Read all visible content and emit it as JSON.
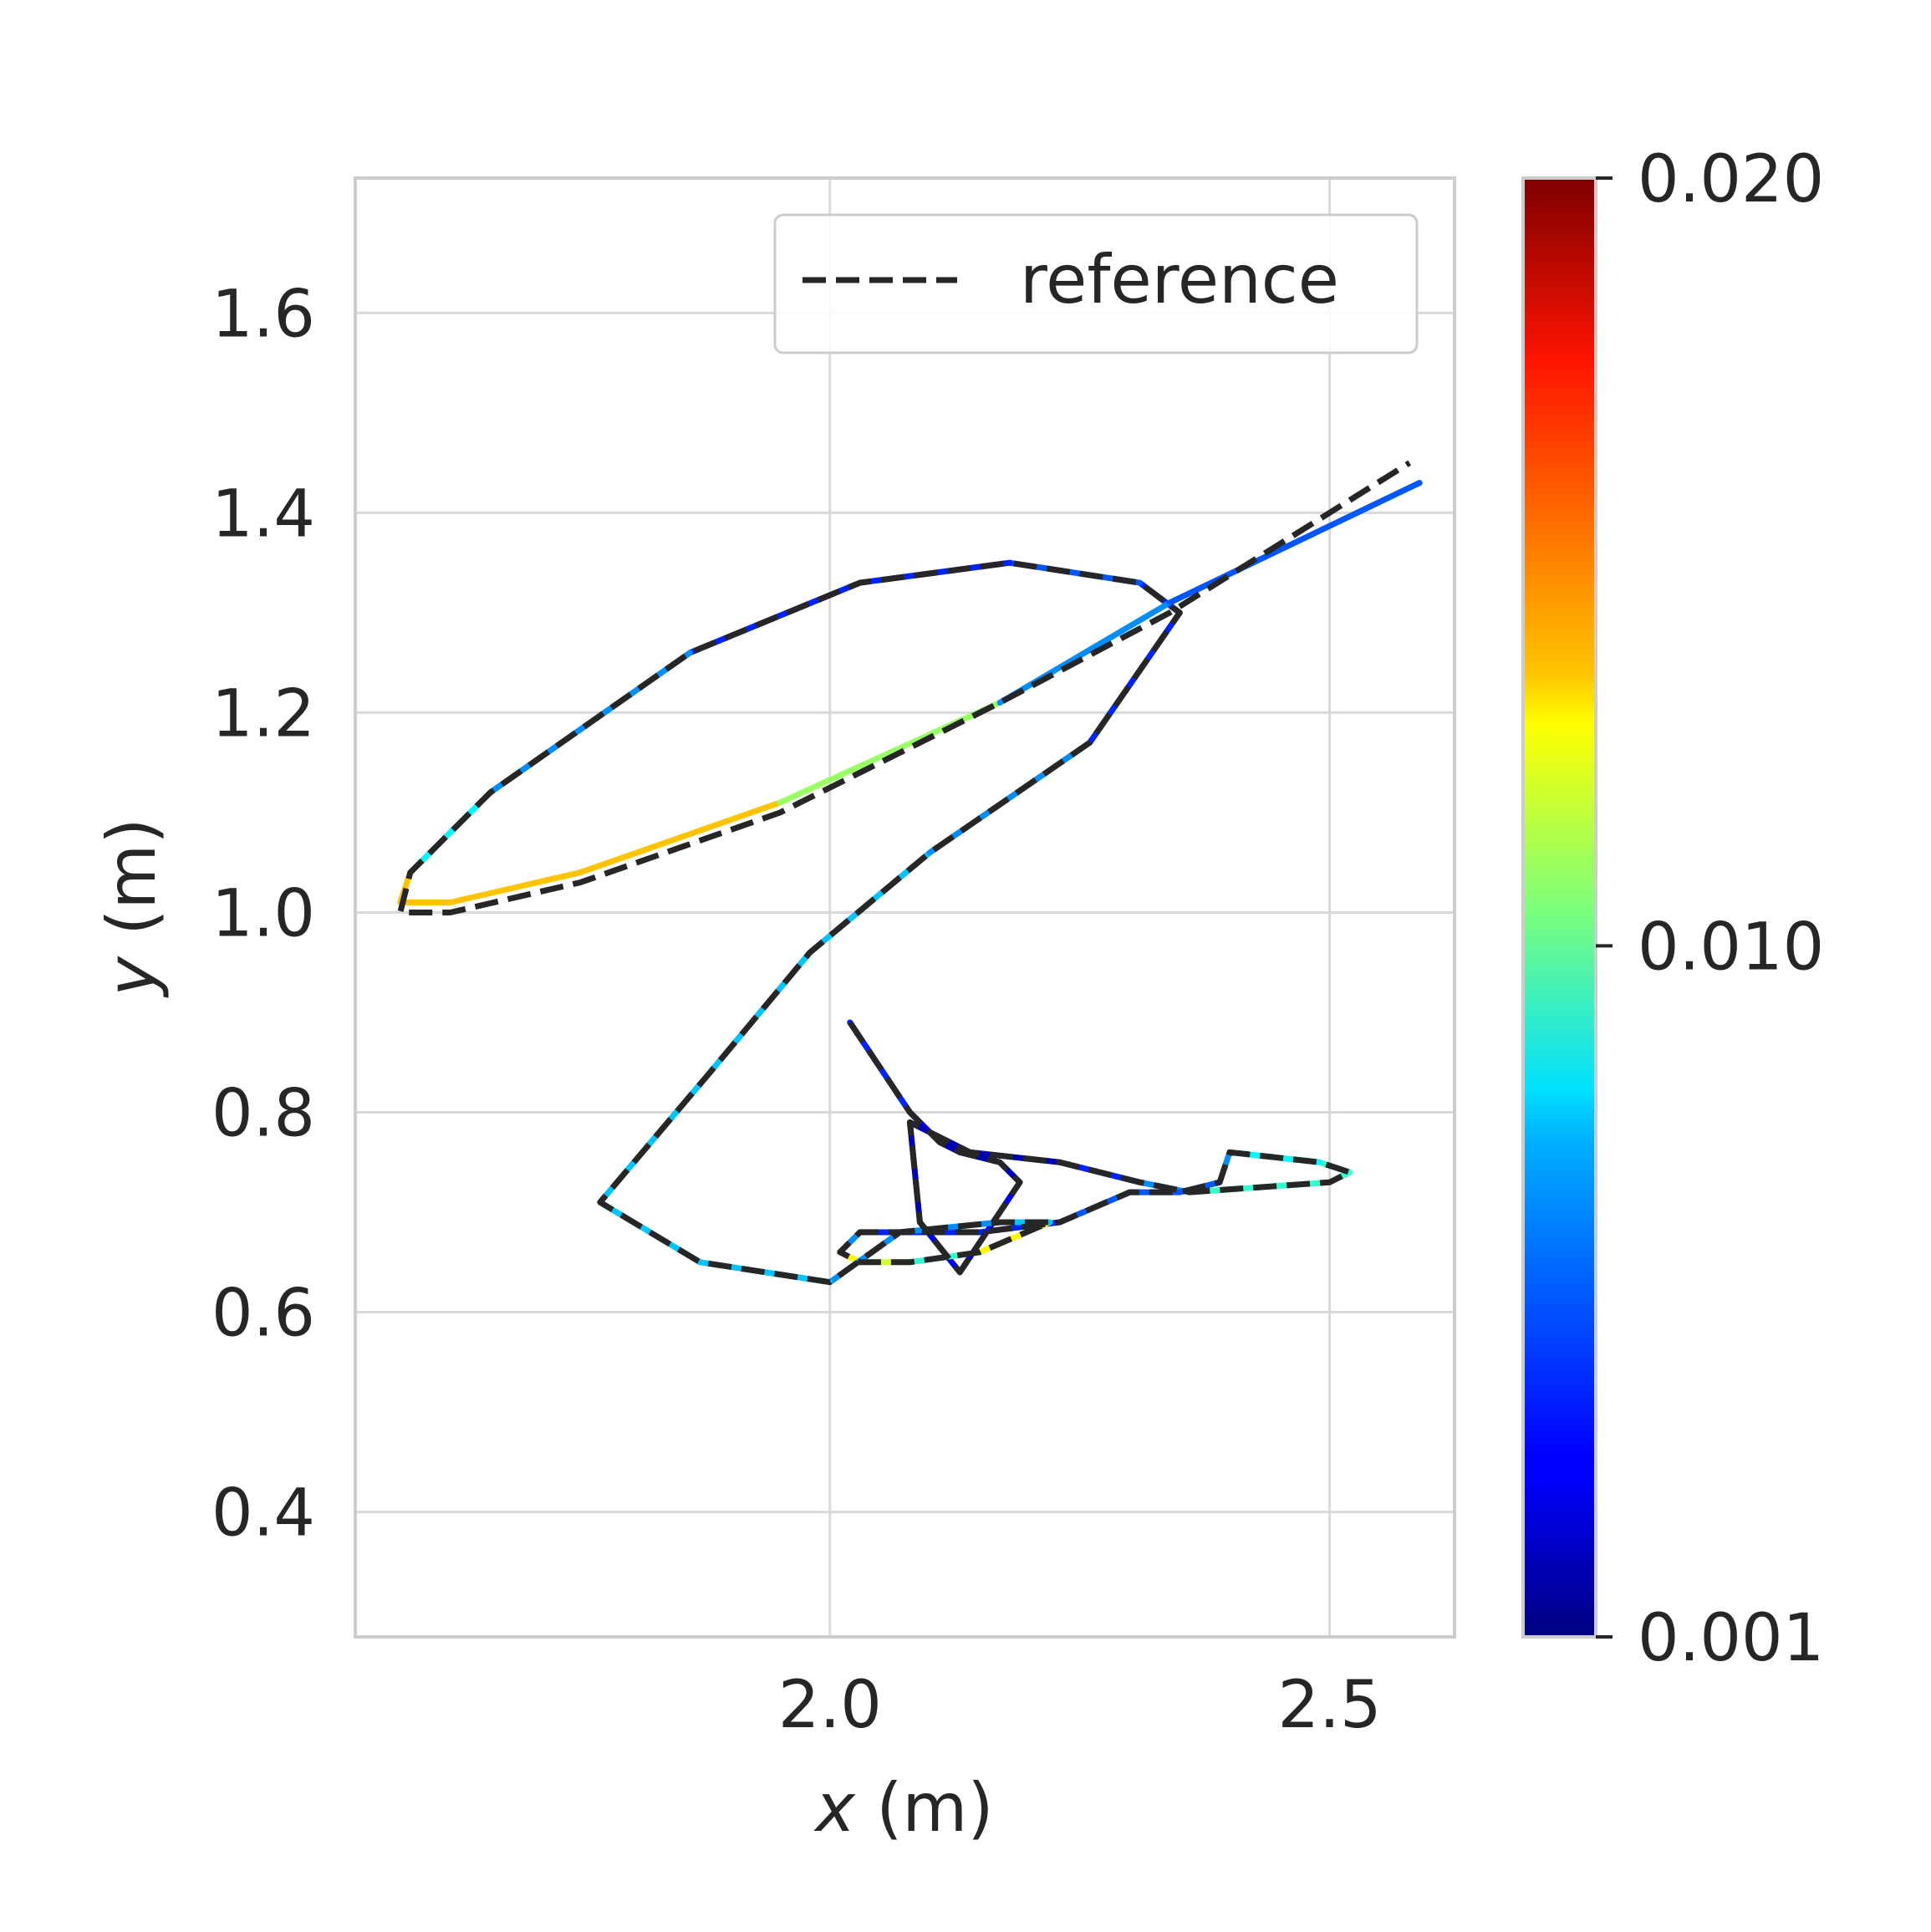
{
  "chart_data": {
    "type": "line",
    "title": "",
    "xlabel_var": "x",
    "xlabel_unit": " (m)",
    "ylabel_var": "y",
    "ylabel_unit": " (m)",
    "xlim": [
      1.525,
      2.625
    ],
    "ylim": [
      0.275,
      1.735
    ],
    "xticks": [
      2.0,
      2.5
    ],
    "xtick_labels": [
      "2.0",
      "2.5"
    ],
    "yticks": [
      0.4,
      0.6,
      0.8,
      1.0,
      1.2,
      1.4,
      1.6
    ],
    "ytick_labels": [
      "0.4",
      "0.6",
      "0.8",
      "1.0",
      "1.2",
      "1.4",
      "1.6"
    ],
    "grid": true,
    "legend": {
      "position": "top-right",
      "entries": [
        "reference"
      ]
    },
    "colorbar": {
      "colormap": "jet",
      "min": 0.001,
      "max": 0.02,
      "ticks": [
        0.001,
        0.01,
        0.02
      ],
      "tick_labels": [
        "0.001",
        "0.010",
        "0.020"
      ]
    },
    "series": [
      {
        "name": "reference",
        "style": "dashed",
        "color": "#262626",
        "x": [
          2.02,
          2.08,
          2.11,
          2.13,
          2.17,
          2.19,
          2.13,
          2.09,
          2.08,
          2.14,
          2.23,
          2.31,
          2.36,
          2.5,
          2.52,
          2.49,
          2.4,
          2.39,
          2.35,
          2.3,
          2.23,
          2.15,
          2.03,
          2.01,
          2.03,
          2.08,
          2.15,
          2.22,
          2.17,
          2.07,
          2.0,
          1.87,
          1.77,
          1.88,
          1.98,
          2.1,
          2.26,
          2.35,
          2.31,
          2.18,
          2.03,
          1.86,
          1.66,
          1.58,
          1.57,
          1.62,
          1.75,
          1.95,
          2.17,
          2.34,
          2.58
        ],
        "y": [
          0.89,
          0.8,
          0.77,
          0.76,
          0.75,
          0.73,
          0.64,
          0.69,
          0.79,
          0.76,
          0.75,
          0.73,
          0.72,
          0.73,
          0.74,
          0.75,
          0.76,
          0.73,
          0.72,
          0.72,
          0.69,
          0.68,
          0.68,
          0.66,
          0.65,
          0.65,
          0.66,
          0.69,
          0.69,
          0.68,
          0.63,
          0.65,
          0.71,
          0.84,
          0.96,
          1.06,
          1.17,
          1.3,
          1.33,
          1.35,
          1.33,
          1.26,
          1.12,
          1.04,
          1.0,
          1.0,
          1.03,
          1.1,
          1.21,
          1.3,
          1.45
        ]
      },
      {
        "name": "",
        "style": "solid",
        "color_by_error": true,
        "x": [
          2.02,
          2.08,
          2.11,
          2.13,
          2.17,
          2.19,
          2.13,
          2.09,
          2.08,
          2.14,
          2.23,
          2.31,
          2.36,
          2.5,
          2.52,
          2.49,
          2.4,
          2.39,
          2.35,
          2.3,
          2.23,
          2.15,
          2.03,
          2.01,
          2.03,
          2.08,
          2.15,
          2.22,
          2.17,
          2.07,
          2.0,
          1.87,
          1.77,
          1.88,
          1.98,
          2.1,
          2.26,
          2.35,
          2.31,
          2.18,
          2.03,
          1.86,
          1.66,
          1.58,
          1.57,
          1.62,
          1.75,
          1.95,
          2.17,
          2.34,
          2.59
        ],
        "y": [
          0.89,
          0.8,
          0.77,
          0.76,
          0.75,
          0.73,
          0.64,
          0.69,
          0.79,
          0.76,
          0.75,
          0.73,
          0.72,
          0.73,
          0.74,
          0.75,
          0.76,
          0.73,
          0.72,
          0.72,
          0.69,
          0.68,
          0.68,
          0.66,
          0.65,
          0.65,
          0.66,
          0.69,
          0.69,
          0.68,
          0.63,
          0.65,
          0.71,
          0.84,
          0.96,
          1.06,
          1.17,
          1.3,
          1.33,
          1.35,
          1.33,
          1.26,
          1.12,
          1.04,
          1.01,
          1.01,
          1.04,
          1.11,
          1.21,
          1.31,
          1.43
        ],
        "error": [
          0.004,
          0.003,
          0.002,
          0.002,
          0.002,
          0.003,
          0.003,
          0.002,
          0.002,
          0.002,
          0.004,
          0.006,
          0.009,
          0.009,
          0.009,
          0.008,
          0.006,
          0.005,
          0.005,
          0.005,
          0.004,
          0.004,
          0.006,
          0.013,
          0.012,
          0.009,
          0.013,
          0.007,
          0.006,
          0.006,
          0.007,
          0.007,
          0.007,
          0.007,
          0.007,
          0.006,
          0.004,
          0.004,
          0.005,
          0.004,
          0.004,
          0.006,
          0.008,
          0.014,
          0.014,
          0.014,
          0.014,
          0.011,
          0.006,
          0.005,
          0.013
        ]
      }
    ]
  }
}
